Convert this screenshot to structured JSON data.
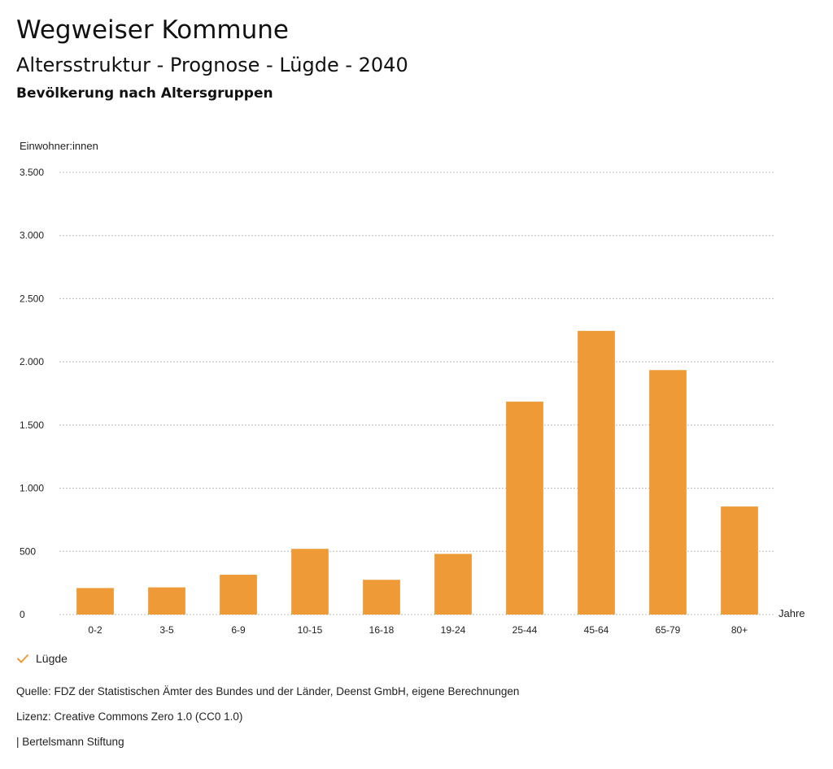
{
  "header": {
    "title": "Wegweiser Kommune",
    "subtitle": "Altersstruktur - Prognose - Lügde - 2040",
    "section_title": "Bevölkerung nach Altersgruppen"
  },
  "colors": {
    "bar": "#ED9A37",
    "grid": "#bbbbbb",
    "text": "#222222",
    "check": "#ED9A37"
  },
  "chart_data": {
    "type": "bar",
    "title": "Bevölkerung nach Altersgruppen",
    "ylabel": "Einwohner:innen",
    "xlabel": "Jahre",
    "categories": [
      "0-2",
      "3-5",
      "6-9",
      "10-15",
      "16-18",
      "19-24",
      "25-44",
      "45-64",
      "65-79",
      "80+"
    ],
    "series": [
      {
        "name": "Lügde",
        "values": [
          210,
          215,
          315,
          520,
          275,
          480,
          1685,
          2245,
          1935,
          855
        ]
      }
    ],
    "ylim": [
      0,
      3500
    ],
    "yticks": [
      0,
      500,
      1000,
      1500,
      2000,
      2500,
      3000,
      3500
    ],
    "ytick_labels": [
      "0",
      "500",
      "1.000",
      "1.500",
      "2.000",
      "2.500",
      "3.000",
      "3.500"
    ],
    "grid": true,
    "legend_position": "bottom-left"
  },
  "legend": {
    "items": [
      {
        "label": "Lügde",
        "icon": "check-icon"
      }
    ]
  },
  "footer": {
    "source": "Quelle: FDZ der Statistischen Ämter des Bundes und der Länder, Deenst GmbH, eigene Berechnungen",
    "license": "Lizenz: Creative Commons Zero 1.0 (CC0 1.0)",
    "publisher": "| Bertelsmann Stiftung"
  }
}
